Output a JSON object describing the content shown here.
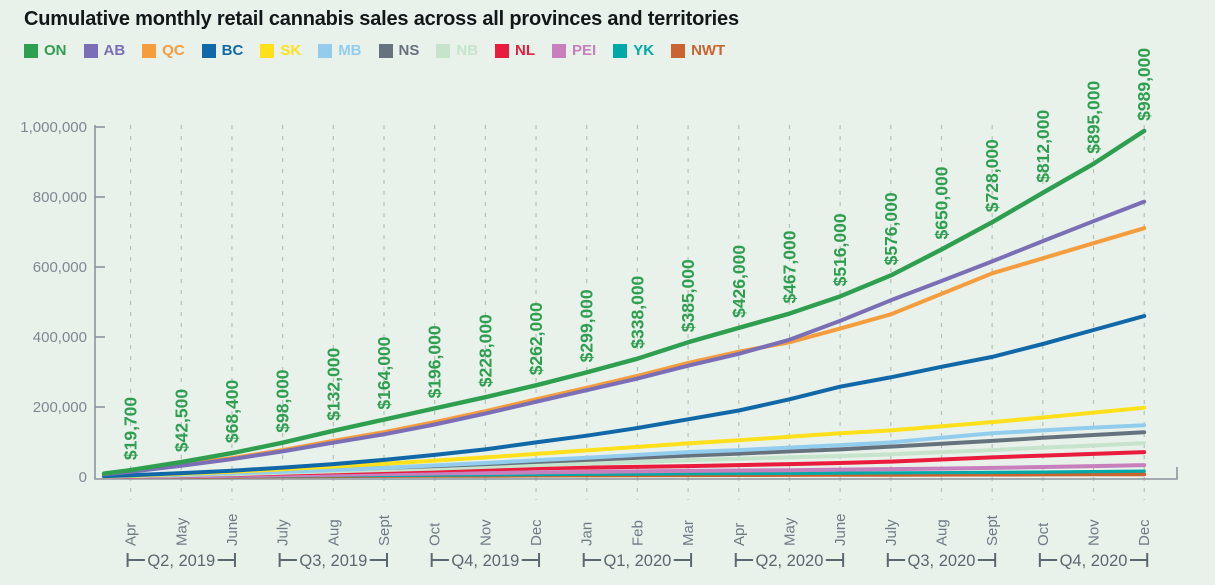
{
  "title": "Cumulative monthly retail cannabis sales across all provinces and territories",
  "background": "#E8F1EA",
  "accent_green": "#2E9E4F",
  "axis_color": "#8A959D",
  "gridline_color": "#B3C0B8",
  "tick_label_color": "#7E8992",
  "month_label_color": "#6F7B85",
  "quarter_label_color": "#5C6870",
  "chart_data": {
    "type": "line",
    "title": "Cumulative monthly retail cannabis sales across all provinces and territories",
    "xlabel": "",
    "ylabel": "",
    "ylim": [
      0,
      1000000
    ],
    "grid": "vertical-dashed",
    "legend_position": "top-left",
    "x_months": [
      "Apr",
      "May",
      "June",
      "July",
      "Aug",
      "Sept",
      "Oct",
      "Nov",
      "Dec",
      "Jan",
      "Feb",
      "Mar",
      "Apr",
      "May",
      "June",
      "July",
      "Aug",
      "Sept",
      "Oct",
      "Nov",
      "Dec"
    ],
    "quarters": [
      {
        "label": "Q2, 2019",
        "start": 0,
        "end": 2
      },
      {
        "label": "Q3, 2019",
        "start": 3,
        "end": 5
      },
      {
        "label": "Q4, 2019",
        "start": 6,
        "end": 8
      },
      {
        "label": "Q1, 2020",
        "start": 9,
        "end": 11
      },
      {
        "label": "Q2, 2020",
        "start": 12,
        "end": 14
      },
      {
        "label": "Q3, 2020",
        "start": 15,
        "end": 17
      },
      {
        "label": "Q4, 2020",
        "start": 18,
        "end": 20
      }
    ],
    "y_ticks": [
      {
        "value": 0,
        "label": "0"
      },
      {
        "value": 200000,
        "label": "200,000"
      },
      {
        "value": 400000,
        "label": "400,000"
      },
      {
        "value": 600000,
        "label": "600,000"
      },
      {
        "value": 800000,
        "label": "800,000"
      },
      {
        "value": 1000000,
        "label": "1,000,000"
      }
    ],
    "on_point_labels": [
      "$19,700",
      "$42,500",
      "$68,400",
      "$98,000",
      "$132,000",
      "$164,000",
      "$196,000",
      "$228,000",
      "$262,000",
      "$299,000",
      "$338,000",
      "$385,000",
      "$426,000",
      "$467,000",
      "$516,000",
      "$576,000",
      "$650,000",
      "$728,000",
      "$812,000",
      "$895,000",
      "$989,000"
    ],
    "series": [
      {
        "name": "ON",
        "color": "#2E9E4F",
        "width": 4.4,
        "values": [
          19700,
          42500,
          68400,
          98000,
          132000,
          164000,
          196000,
          228000,
          262000,
          299000,
          338000,
          385000,
          426000,
          467000,
          516000,
          576000,
          650000,
          728000,
          812000,
          895000,
          989000
        ]
      },
      {
        "name": "AB",
        "color": "#7A6FB6",
        "width": 4,
        "values": [
          15000,
          32000,
          51000,
          73000,
          98000,
          122000,
          150000,
          181000,
          215000,
          248000,
          281000,
          318000,
          352000,
          392000,
          446000,
          505000,
          560000,
          616000,
          674000,
          731000,
          787000
        ]
      },
      {
        "name": "QC",
        "color": "#F59C3C",
        "width": 4,
        "values": [
          17000,
          35000,
          54000,
          77000,
          103000,
          128000,
          157000,
          188000,
          222000,
          255000,
          289000,
          326000,
          358000,
          385000,
          424000,
          465000,
          523000,
          582000,
          625000,
          668000,
          711000
        ]
      },
      {
        "name": "BC",
        "color": "#1068A8",
        "width": 4,
        "values": [
          5000,
          11000,
          18000,
          27000,
          37000,
          49000,
          63000,
          79000,
          99000,
          118000,
          140000,
          165000,
          190000,
          222000,
          258000,
          285000,
          315000,
          343000,
          380000,
          420000,
          460000
        ]
      },
      {
        "name": "SK",
        "color": "#FFE01A",
        "width": 4,
        "values": [
          4000,
          9000,
          15000,
          22000,
          30000,
          38000,
          47000,
          56000,
          66000,
          76000,
          86000,
          96000,
          105000,
          115000,
          125000,
          133000,
          145000,
          157000,
          170000,
          184000,
          198000
        ]
      },
      {
        "name": "MB",
        "color": "#93CDEE",
        "width": 4,
        "values": [
          3000,
          6500,
          10500,
          15000,
          20000,
          26000,
          33000,
          40000,
          48000,
          55000,
          63000,
          71000,
          77000,
          84000,
          91000,
          99000,
          112000,
          125000,
          133000,
          141000,
          148000
        ]
      },
      {
        "name": "NS",
        "color": "#67727F",
        "width": 4,
        "values": [
          3500,
          7000,
          11000,
          16000,
          21000,
          26000,
          31000,
          37000,
          43000,
          49000,
          55000,
          61000,
          67000,
          73000,
          79000,
          87000,
          95000,
          103000,
          112000,
          120000,
          128000
        ]
      },
      {
        "name": "NB",
        "color": "#C6E3CC",
        "width": 4,
        "values": [
          2500,
          5000,
          8000,
          12000,
          16000,
          20000,
          24000,
          29000,
          34000,
          38000,
          43000,
          48000,
          52000,
          56000,
          60000,
          65000,
          71000,
          77000,
          84000,
          90000,
          97000
        ]
      },
      {
        "name": "NL",
        "color": "#E91C3E",
        "width": 4,
        "values": [
          2000,
          4500,
          7000,
          10000,
          13000,
          16000,
          19000,
          22000,
          25000,
          27000,
          29000,
          31000,
          34000,
          37000,
          40000,
          44000,
          50000,
          56000,
          61000,
          66000,
          71000
        ]
      },
      {
        "name": "PEI",
        "color": "#C77FBE",
        "width": 4,
        "values": [
          1000,
          2200,
          3500,
          5000,
          6600,
          8200,
          10000,
          11500,
          13000,
          14500,
          16000,
          17500,
          18500,
          19500,
          21000,
          22500,
          24000,
          26000,
          28500,
          31000,
          34000
        ]
      },
      {
        "name": "YK",
        "color": "#00A9A5",
        "width": 3.2,
        "values": [
          600,
          1300,
          2000,
          2800,
          3600,
          4400,
          5200,
          6000,
          6800,
          7600,
          8400,
          9200,
          9800,
          10400,
          11000,
          11700,
          12400,
          13100,
          14000,
          15500,
          17000
        ]
      },
      {
        "name": "NWT",
        "color": "#C96430",
        "width": 4,
        "values": [
          500,
          1000,
          1500,
          2000,
          2500,
          3000,
          3400,
          3800,
          4200,
          4600,
          5000,
          5400,
          5700,
          6000,
          6300,
          6600,
          6900,
          7200,
          7500,
          7800,
          8100
        ]
      }
    ]
  }
}
